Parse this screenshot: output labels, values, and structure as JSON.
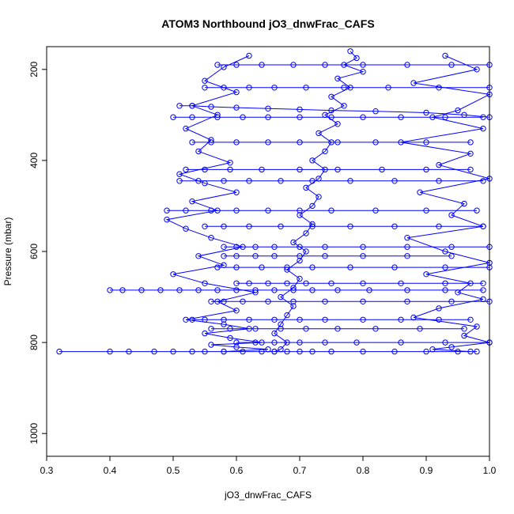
{
  "chart_data": {
    "type": "scatter",
    "title": "ATOM3 Northbound jO3_dnwFrac_CAFS",
    "xlabel": "jO3_dnwFrac_CAFS",
    "ylabel": "Pressure (mbar)",
    "xlim": [
      0.3,
      1.0
    ],
    "ylim": [
      1050,
      150
    ],
    "y_reversed": true,
    "grid": false,
    "legend": "none",
    "point_style": "open-circle-with-connecting-lines",
    "color": "#0000ff",
    "x_ticks": [
      "0.3",
      "0.4",
      "0.5",
      "0.6",
      "0.7",
      "0.8",
      "0.9",
      "1.0"
    ],
    "y_ticks": [
      "200",
      "400",
      "600",
      "800",
      "1000"
    ],
    "series": [
      {
        "x": [
          0.78,
          0.79,
          0.77,
          0.8,
          0.76,
          0.78,
          0.75,
          0.77,
          0.74,
          0.76,
          0.73,
          0.75,
          0.74,
          0.72,
          0.74,
          0.73,
          0.71,
          0.73,
          0.72,
          0.7,
          0.72,
          0.71,
          0.69,
          0.71,
          0.7,
          0.68,
          0.7,
          0.69,
          0.67,
          0.69,
          0.68,
          0.67,
          0.66,
          0.68,
          0.67,
          0.66
        ],
        "y": [
          160,
          175,
          190,
          205,
          220,
          240,
          260,
          280,
          300,
          320,
          340,
          360,
          380,
          400,
          420,
          440,
          460,
          480,
          500,
          520,
          540,
          560,
          580,
          600,
          620,
          640,
          660,
          680,
          700,
          720,
          740,
          760,
          780,
          800,
          815,
          820
        ]
      },
      {
        "x": [
          0.62,
          0.58,
          0.55,
          0.6,
          0.53,
          0.57,
          0.52,
          0.56,
          0.54,
          0.59,
          0.51,
          0.55,
          0.6,
          0.53,
          0.57,
          0.49,
          0.52,
          0.56,
          0.61,
          0.54,
          0.58,
          0.5,
          0.55,
          0.63,
          0.57,
          0.6,
          0.52,
          0.58,
          0.62,
          0.55,
          0.59,
          0.64,
          0.56,
          0.6,
          0.65,
          0.58
        ],
        "y": [
          170,
          195,
          225,
          250,
          280,
          300,
          330,
          355,
          380,
          405,
          430,
          450,
          470,
          490,
          510,
          530,
          550,
          570,
          590,
          610,
          630,
          650,
          670,
          690,
          710,
          730,
          750,
          760,
          770,
          780,
          790,
          800,
          805,
          810,
          815,
          820
        ]
      },
      {
        "x": [
          0.93,
          0.98,
          0.88,
          1.0,
          0.95,
          0.91,
          0.99,
          0.86,
          0.97,
          0.92,
          1.0,
          0.89,
          0.96,
          0.94,
          0.99,
          0.87,
          0.93,
          1.0,
          0.9,
          0.97,
          0.95,
          0.99,
          0.92,
          0.88,
          0.98,
          0.96,
          1.0,
          0.94,
          0.91,
          0.97
        ],
        "y": [
          170,
          200,
          230,
          255,
          290,
          305,
          330,
          360,
          385,
          410,
          440,
          470,
          495,
          520,
          545,
          570,
          600,
          625,
          650,
          670,
          690,
          705,
          725,
          745,
          765,
          785,
          800,
          810,
          815,
          820
        ]
      },
      {
        "x": [
          0.32,
          0.4,
          0.43,
          0.47,
          0.5,
          0.53,
          0.55,
          0.58,
          0.61,
          0.64,
          0.66,
          0.68,
          0.7,
          0.72,
          0.75,
          0.8,
          0.85,
          0.9,
          0.95,
          0.98
        ],
        "y": [
          820,
          820,
          820,
          820,
          820,
          820,
          820,
          820,
          820,
          820,
          820,
          820,
          820,
          820,
          820,
          820,
          820,
          820,
          820,
          820
        ]
      },
      {
        "x": [
          0.4,
          0.42,
          0.45,
          0.48,
          0.51,
          0.54,
          0.57,
          0.6,
          0.63,
          0.66,
          0.69,
          0.72,
          0.76,
          0.81,
          0.87,
          0.93,
          0.99
        ],
        "y": [
          685,
          685,
          685,
          685,
          685,
          685,
          685,
          685,
          685,
          685,
          685,
          685,
          685,
          685,
          685,
          685,
          685
        ]
      },
      {
        "x": [
          0.53,
          0.55,
          0.58,
          0.62,
          0.66,
          0.7,
          0.74,
          0.8,
          0.86,
          0.92,
          0.97
        ],
        "y": [
          750,
          750,
          750,
          750,
          750,
          750,
          750,
          750,
          750,
          750,
          750
        ]
      },
      {
        "x": [
          0.51,
          0.53,
          0.56,
          0.6,
          0.65,
          0.7,
          0.75,
          0.82,
          0.9,
          0.96,
          1.0
        ],
        "y": [
          280,
          280,
          282,
          284,
          286,
          288,
          290,
          292,
          295,
          300,
          305
        ]
      },
      {
        "x": [
          0.5,
          0.53,
          0.57,
          0.61,
          0.65,
          0.7,
          0.75,
          0.8,
          0.86,
          0.93,
          0.99
        ],
        "y": [
          305,
          305,
          305,
          305,
          305,
          305,
          305,
          305,
          305,
          305,
          305
        ]
      },
      {
        "x": [
          0.58,
          0.6,
          0.63,
          0.66,
          0.7,
          0.74,
          0.8,
          0.87,
          0.94,
          1.0
        ],
        "y": [
          590,
          590,
          590,
          590,
          590,
          590,
          590,
          590,
          590,
          590
        ]
      },
      {
        "x": [
          0.58,
          0.6,
          0.63,
          0.66,
          0.7,
          0.74,
          0.8,
          0.87,
          0.94
        ],
        "y": [
          610,
          610,
          610,
          610,
          610,
          610,
          610,
          610,
          610
        ]
      },
      {
        "x": [
          0.6,
          0.62,
          0.65,
          0.68,
          0.71,
          0.75,
          0.8,
          0.86,
          0.93,
          0.99
        ],
        "y": [
          670,
          670,
          670,
          670,
          670,
          670,
          670,
          670,
          670,
          670
        ]
      },
      {
        "x": [
          0.49,
          0.52,
          0.56,
          0.6,
          0.65,
          0.7,
          0.75,
          0.82,
          0.9,
          0.98
        ],
        "y": [
          510,
          510,
          510,
          510,
          510,
          510,
          510,
          510,
          510,
          510
        ]
      },
      {
        "x": [
          0.51,
          0.54,
          0.58,
          0.62,
          0.67,
          0.72,
          0.78,
          0.85,
          0.92,
          0.99
        ],
        "y": [
          445,
          445,
          445,
          445,
          445,
          445,
          445,
          445,
          445,
          445
        ]
      },
      {
        "x": [
          0.52,
          0.55,
          0.59,
          0.64,
          0.7,
          0.76,
          0.83,
          0.9,
          0.97
        ],
        "y": [
          420,
          420,
          420,
          420,
          420,
          420,
          420,
          420,
          420
        ]
      },
      {
        "x": [
          0.53,
          0.56,
          0.6,
          0.65,
          0.7,
          0.76,
          0.82,
          0.9,
          0.97
        ],
        "y": [
          360,
          360,
          360,
          360,
          360,
          360,
          360,
          360,
          360
        ]
      },
      {
        "x": [
          0.56,
          0.58,
          0.61,
          0.65,
          0.69,
          0.74,
          0.8,
          0.87,
          0.94,
          1.0
        ],
        "y": [
          710,
          710,
          710,
          710,
          710,
          710,
          710,
          710,
          710,
          710
        ]
      },
      {
        "x": [
          0.57,
          0.6,
          0.64,
          0.68,
          0.72,
          0.78,
          0.85,
          0.93,
          1.0
        ],
        "y": [
          635,
          635,
          635,
          635,
          635,
          635,
          635,
          635,
          635
        ]
      },
      {
        "x": [
          0.55,
          0.58,
          0.62,
          0.67,
          0.72,
          0.78,
          0.85,
          0.92,
          0.99
        ],
        "y": [
          545,
          545,
          545,
          545,
          545,
          545,
          545,
          545,
          545
        ]
      },
      {
        "x": [
          0.56,
          0.59,
          0.63,
          0.67,
          0.71,
          0.76,
          0.82,
          0.89,
          0.96
        ],
        "y": [
          770,
          770,
          770,
          770,
          770,
          770,
          770,
          770,
          770
        ]
      },
      {
        "x": [
          0.6,
          0.63,
          0.66,
          0.7,
          0.74,
          0.79,
          0.86,
          0.93,
          1.0
        ],
        "y": [
          800,
          800,
          800,
          800,
          800,
          800,
          800,
          800,
          800
        ]
      },
      {
        "x": [
          0.55,
          0.58,
          0.62,
          0.66,
          0.71,
          0.77,
          0.84,
          0.92,
          1.0
        ],
        "y": [
          240,
          240,
          240,
          240,
          240,
          240,
          240,
          240,
          240
        ]
      },
      {
        "x": [
          0.57,
          0.6,
          0.64,
          0.69,
          0.74,
          0.8,
          0.87,
          0.94,
          1.0
        ],
        "y": [
          190,
          190,
          190,
          190,
          190,
          190,
          190,
          190,
          190
        ]
      }
    ]
  }
}
